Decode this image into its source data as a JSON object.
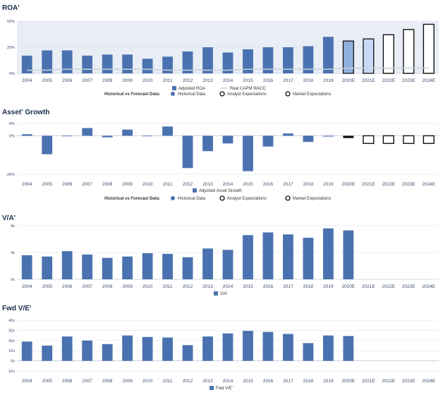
{
  "colors": {
    "bar": "#4a72b0",
    "forecast_light1": "#8fb0de",
    "forecast_light2": "#c7daf5",
    "outline": "#111111",
    "axis_text": "#3a4a6a",
    "title": "#1a2b4c",
    "wacc_line": "#c8d2dc",
    "band": "#e9eef6"
  },
  "legend_common": {
    "hist_vs_forecast": "Historical vs Forecast Data:",
    "historical": "Historical Data",
    "analyst": "Analyst Expectations",
    "market": "Market Expectations"
  },
  "chart_data": [
    {
      "id": "roa",
      "title": "ROA'",
      "type": "bar",
      "categories": [
        "2004",
        "2005",
        "2006",
        "2007",
        "2008",
        "2009",
        "2010",
        "2011",
        "2012",
        "2013",
        "2014",
        "2015",
        "2016",
        "2017",
        "2018",
        "2019",
        "2020E",
        "2021E",
        "2022E",
        "2023E",
        "2024E"
      ],
      "values": [
        17,
        22,
        22,
        17,
        18,
        18,
        14,
        16,
        21,
        25,
        20,
        23,
        25,
        25,
        26,
        35,
        31,
        33,
        37,
        42,
        47
      ],
      "styles": [
        "h",
        "h",
        "h",
        "h",
        "h",
        "h",
        "h",
        "h",
        "h",
        "h",
        "h",
        "h",
        "h",
        "h",
        "h",
        "h",
        "a1",
        "a2",
        "m",
        "m",
        "m"
      ],
      "wacc": [
        3,
        3,
        4,
        4,
        4,
        4,
        4,
        3,
        3,
        3,
        3,
        4,
        4,
        4,
        4,
        4,
        5,
        5,
        5,
        5,
        5
      ],
      "yticks": [
        "0%",
        "25%",
        "50%"
      ],
      "ytick_values": [
        0,
        25,
        50
      ],
      "ylim": [
        0,
        50
      ],
      "legend": {
        "series": "Adjusted ROA",
        "line": "Real CAPM WACC"
      }
    },
    {
      "id": "asset_growth",
      "title": "Asset' Growth",
      "type": "bar",
      "categories": [
        "2004",
        "2005",
        "2006",
        "2007",
        "2008",
        "2009",
        "2010",
        "2011",
        "2012",
        "2013",
        "2014",
        "2015",
        "2016",
        "2017",
        "2018",
        "2019",
        "2020E",
        "2021E",
        "2022E",
        "2023E",
        "2024E"
      ],
      "values": [
        1,
        -12,
        0,
        5,
        -1,
        4,
        0,
        6,
        -21,
        -10,
        -5,
        -23,
        -7,
        1.5,
        -4,
        -0.5,
        -1.5,
        -5,
        -5,
        -5,
        -5
      ],
      "styles": [
        "h",
        "h",
        "h",
        "h",
        "h",
        "h",
        "h",
        "h",
        "h",
        "h",
        "h",
        "h",
        "h",
        "h",
        "h",
        "h",
        "k",
        "m",
        "m",
        "m",
        "m"
      ],
      "yticks": [
        "8%",
        "0%",
        "-25%"
      ],
      "ytick_values": [
        8,
        0,
        -25
      ],
      "ylim": [
        -25,
        8
      ],
      "legend": {
        "series": "Adjusted Asset Growth"
      }
    },
    {
      "id": "va",
      "title": "V/A'",
      "type": "bar",
      "categories": [
        "2004",
        "2005",
        "2006",
        "2007",
        "2008",
        "2009",
        "2010",
        "2011",
        "2012",
        "2013",
        "2014",
        "2015",
        "2016",
        "2017",
        "2018",
        "2019",
        "2020E",
        "2021E",
        "2022E",
        "2023E",
        "2024E"
      ],
      "values": [
        3.6,
        3.4,
        4.2,
        3.7,
        3.2,
        3.4,
        3.9,
        3.8,
        3.3,
        4.6,
        4.4,
        6.6,
        7.0,
        6.7,
        6.2,
        7.6,
        7.3,
        null,
        null,
        null,
        null
      ],
      "yticks": [
        "0x",
        "4x",
        "8x"
      ],
      "ytick_values": [
        0,
        4,
        8
      ],
      "ylim": [
        0,
        8
      ],
      "legend": {
        "series": "V/A'"
      }
    },
    {
      "id": "fwd_ve",
      "title": "Fwd V/E'",
      "type": "bar",
      "categories": [
        "2004",
        "2005",
        "2006",
        "2007",
        "2008",
        "2009",
        "2010",
        "2011",
        "2012",
        "2013",
        "2014",
        "2015",
        "2016",
        "2017",
        "2018",
        "2019",
        "2020E",
        "2021E",
        "2022E",
        "2023E",
        "2024E"
      ],
      "values": [
        19,
        15,
        24,
        20,
        16.5,
        25,
        23.5,
        23,
        15.5,
        24,
        27,
        29.5,
        28.5,
        26.5,
        17.5,
        25,
        24.5,
        null,
        null,
        null,
        null
      ],
      "yticks": [
        "40x",
        "30x",
        "20x",
        "10x",
        "0x",
        "-10x"
      ],
      "ytick_values": [
        40,
        30,
        20,
        10,
        0,
        -10
      ],
      "ylim": [
        -10,
        40
      ],
      "legend": {
        "series": "Fwd V/E'"
      }
    }
  ]
}
